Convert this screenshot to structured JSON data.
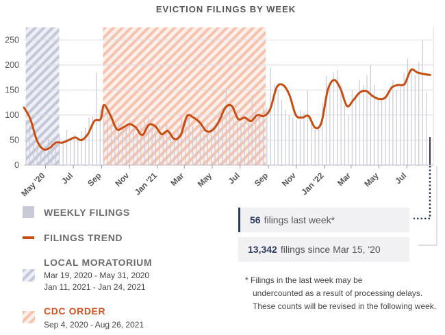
{
  "title": "EVICTION FILINGS BY WEEK",
  "chart_data": {
    "type": "bar",
    "title": "EVICTION FILINGS BY WEEK",
    "ylim": [
      0,
      275
    ],
    "yticks": [
      0,
      50,
      100,
      150,
      200,
      250
    ],
    "x_start": "2020-03-15",
    "x_end": "2022-08-28",
    "xticks": [
      {
        "label": "May '20",
        "date": "2020-05-01"
      },
      {
        "label": "Jul",
        "date": "2020-07-01"
      },
      {
        "label": "Sep",
        "date": "2020-09-01"
      },
      {
        "label": "Nov",
        "date": "2020-11-01"
      },
      {
        "label": "Jan '21",
        "date": "2021-01-01"
      },
      {
        "label": "Mar",
        "date": "2021-03-01"
      },
      {
        "label": "May",
        "date": "2021-05-01"
      },
      {
        "label": "Jul",
        "date": "2021-07-01"
      },
      {
        "label": "Sep",
        "date": "2021-09-01"
      },
      {
        "label": "Nov",
        "date": "2021-11-01"
      },
      {
        "label": "Jan '22",
        "date": "2022-01-01"
      },
      {
        "label": "Mar",
        "date": "2022-03-01"
      },
      {
        "label": "May",
        "date": "2022-05-01"
      },
      {
        "label": "Jul",
        "date": "2022-07-01"
      }
    ],
    "weekly_filings": [
      90,
      80,
      50,
      35,
      30,
      40,
      58,
      45,
      50,
      62,
      45,
      70,
      55,
      60,
      50,
      68,
      75,
      95,
      98,
      185,
      110,
      92,
      105,
      80,
      70,
      85,
      82,
      80,
      90,
      75,
      60,
      80,
      90,
      95,
      92,
      70,
      80,
      62,
      80,
      58,
      62,
      72,
      100,
      90,
      95,
      78,
      60,
      80,
      62,
      85,
      75,
      85,
      100,
      115,
      148,
      120,
      90,
      110,
      85,
      95,
      90,
      140,
      110,
      105,
      125,
      115,
      195,
      160,
      150,
      130,
      110,
      100,
      95,
      90,
      110,
      105,
      150,
      90,
      70,
      75,
      125,
      178,
      165,
      185,
      190,
      160,
      120,
      100,
      150,
      140,
      170,
      160,
      180,
      200,
      160,
      135,
      130,
      135,
      140,
      170,
      150,
      160,
      185,
      212,
      190,
      180,
      205,
      250,
      145,
      56
    ],
    "trend": [
      {
        "date": "2020-03-15",
        "value": 115
      },
      {
        "date": "2020-03-29",
        "value": 92
      },
      {
        "date": "2020-04-12",
        "value": 50
      },
      {
        "date": "2020-04-26",
        "value": 32
      },
      {
        "date": "2020-05-10",
        "value": 34
      },
      {
        "date": "2020-05-24",
        "value": 45
      },
      {
        "date": "2020-06-07",
        "value": 45
      },
      {
        "date": "2020-06-21",
        "value": 50
      },
      {
        "date": "2020-07-05",
        "value": 55
      },
      {
        "date": "2020-07-19",
        "value": 50
      },
      {
        "date": "2020-08-02",
        "value": 62
      },
      {
        "date": "2020-08-16",
        "value": 88
      },
      {
        "date": "2020-08-30",
        "value": 92
      },
      {
        "date": "2020-09-06",
        "value": 120
      },
      {
        "date": "2020-09-20",
        "value": 100
      },
      {
        "date": "2020-10-04",
        "value": 72
      },
      {
        "date": "2020-10-18",
        "value": 75
      },
      {
        "date": "2020-11-01",
        "value": 82
      },
      {
        "date": "2020-11-15",
        "value": 75
      },
      {
        "date": "2020-11-29",
        "value": 60
      },
      {
        "date": "2020-12-13",
        "value": 80
      },
      {
        "date": "2020-12-27",
        "value": 78
      },
      {
        "date": "2021-01-10",
        "value": 62
      },
      {
        "date": "2021-01-24",
        "value": 68
      },
      {
        "date": "2021-02-07",
        "value": 52
      },
      {
        "date": "2021-02-21",
        "value": 60
      },
      {
        "date": "2021-03-07",
        "value": 98
      },
      {
        "date": "2021-03-21",
        "value": 95
      },
      {
        "date": "2021-04-04",
        "value": 85
      },
      {
        "date": "2021-04-18",
        "value": 68
      },
      {
        "date": "2021-05-02",
        "value": 70
      },
      {
        "date": "2021-05-16",
        "value": 88
      },
      {
        "date": "2021-05-30",
        "value": 115
      },
      {
        "date": "2021-06-13",
        "value": 118
      },
      {
        "date": "2021-06-27",
        "value": 92
      },
      {
        "date": "2021-07-11",
        "value": 95
      },
      {
        "date": "2021-07-25",
        "value": 88
      },
      {
        "date": "2021-08-08",
        "value": 100
      },
      {
        "date": "2021-08-22",
        "value": 98
      },
      {
        "date": "2021-09-05",
        "value": 112
      },
      {
        "date": "2021-09-19",
        "value": 155
      },
      {
        "date": "2021-10-03",
        "value": 160
      },
      {
        "date": "2021-10-17",
        "value": 140
      },
      {
        "date": "2021-10-31",
        "value": 100
      },
      {
        "date": "2021-11-14",
        "value": 95
      },
      {
        "date": "2021-11-28",
        "value": 98
      },
      {
        "date": "2021-12-12",
        "value": 75
      },
      {
        "date": "2021-12-26",
        "value": 85
      },
      {
        "date": "2022-01-09",
        "value": 150
      },
      {
        "date": "2022-01-23",
        "value": 170
      },
      {
        "date": "2022-02-06",
        "value": 152
      },
      {
        "date": "2022-02-20",
        "value": 118
      },
      {
        "date": "2022-03-06",
        "value": 130
      },
      {
        "date": "2022-03-20",
        "value": 145
      },
      {
        "date": "2022-04-03",
        "value": 148
      },
      {
        "date": "2022-04-17",
        "value": 138
      },
      {
        "date": "2022-05-01",
        "value": 132
      },
      {
        "date": "2022-05-15",
        "value": 135
      },
      {
        "date": "2022-05-29",
        "value": 155
      },
      {
        "date": "2022-06-12",
        "value": 160
      },
      {
        "date": "2022-06-26",
        "value": 162
      },
      {
        "date": "2022-07-10",
        "value": 190
      },
      {
        "date": "2022-07-24",
        "value": 185
      },
      {
        "date": "2022-08-07",
        "value": 182
      },
      {
        "date": "2022-08-21",
        "value": 180
      }
    ],
    "shaded_periods": [
      {
        "name": "local-moratorium",
        "start": "2020-03-19",
        "end": "2020-05-31"
      },
      {
        "name": "local-moratorium",
        "start": "2021-01-11",
        "end": "2021-01-24"
      },
      {
        "name": "cdc-order",
        "start": "2020-09-04",
        "end": "2021-08-26"
      }
    ]
  },
  "legend": {
    "weekly": "WEEKLY FILINGS",
    "trend": "FILINGS TREND",
    "local": "LOCAL MORATORIUM",
    "local_dates": [
      "Mar 19, 2020 - May 31, 2020",
      "Jan 11, 2021 - Jan 24, 2021"
    ],
    "cdc": "CDC ORDER",
    "cdc_dates": [
      "Sep 4, 2020 - Aug 26, 2021"
    ]
  },
  "stats": {
    "last_week_value": "56",
    "last_week_text": "filings last week*",
    "since_value": "13,342",
    "since_text": "filings since Mar 15, '20"
  },
  "footnote": {
    "line1": "* Filings in the last week may be",
    "rest": "undercounted as a result of processing delays. These counts will be revised in the following week."
  },
  "colors": {
    "bars": "#c9cad8",
    "trend": "#c84d12",
    "local": "#c3c7d9",
    "cdc": "#f5b79f",
    "text": "#555555",
    "accent": "#2c3a5c"
  }
}
